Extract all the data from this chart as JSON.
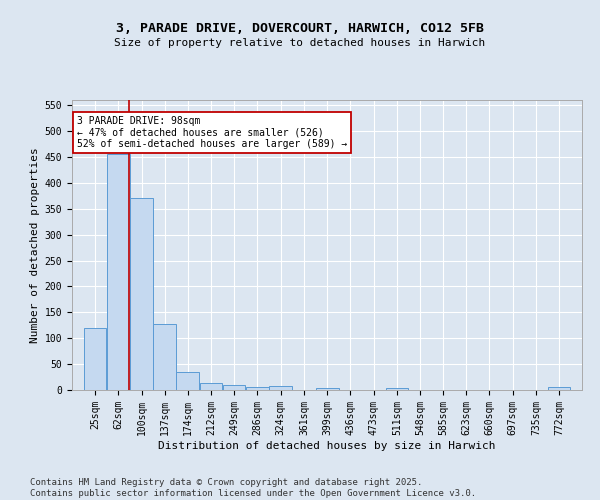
{
  "title_line1": "3, PARADE DRIVE, DOVERCOURT, HARWICH, CO12 5FB",
  "title_line2": "Size of property relative to detached houses in Harwich",
  "xlabel": "Distribution of detached houses by size in Harwich",
  "ylabel": "Number of detached properties",
  "footnote1": "Contains HM Land Registry data © Crown copyright and database right 2025.",
  "footnote2": "Contains public sector information licensed under the Open Government Licence v3.0.",
  "bar_color": "#c5d9f0",
  "bar_edge_color": "#5b9bd5",
  "background_color": "#dce6f1",
  "plot_bg_color": "#dce6f1",
  "grid_color": "#ffffff",
  "vline_color": "#c00000",
  "vline_x": 98,
  "annotation_text": "3 PARADE DRIVE: 98sqm\n← 47% of detached houses are smaller (526)\n52% of semi-detached houses are larger (589) →",
  "annotation_box_color": "#ffffff",
  "annotation_border_color": "#c00000",
  "categories": [
    "25sqm",
    "62sqm",
    "100sqm",
    "137sqm",
    "174sqm",
    "212sqm",
    "249sqm",
    "286sqm",
    "324sqm",
    "361sqm",
    "399sqm",
    "436sqm",
    "473sqm",
    "511sqm",
    "548sqm",
    "585sqm",
    "623sqm",
    "660sqm",
    "697sqm",
    "735sqm",
    "772sqm"
  ],
  "bin_edges": [
    25,
    62,
    100,
    137,
    174,
    212,
    249,
    286,
    324,
    361,
    399,
    436,
    473,
    511,
    548,
    585,
    623,
    660,
    697,
    735,
    772
  ],
  "values": [
    120,
    455,
    370,
    128,
    35,
    14,
    9,
    5,
    7,
    0,
    3,
    0,
    0,
    3,
    0,
    0,
    0,
    0,
    0,
    0,
    5
  ],
  "ylim": [
    0,
    560
  ],
  "yticks": [
    0,
    50,
    100,
    150,
    200,
    250,
    300,
    350,
    400,
    450,
    500,
    550
  ],
  "title_fontsize": 9.5,
  "subtitle_fontsize": 8,
  "tick_fontsize": 7,
  "ylabel_fontsize": 8,
  "xlabel_fontsize": 8,
  "footnote_fontsize": 6.5
}
